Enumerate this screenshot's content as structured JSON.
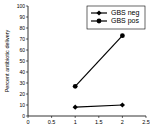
{
  "chart_data": {
    "type": "line",
    "y_label": "Percent antibiotic delivery",
    "x": [
      1,
      2
    ],
    "series": [
      {
        "name": "GBS neg",
        "color": "#000000",
        "marker": "diamond",
        "values": [
          8,
          10
        ]
      },
      {
        "name": "GBS pos",
        "color": "#000000",
        "marker": "circle",
        "values": [
          27,
          73
        ]
      }
    ],
    "xlim": [
      0,
      2.5
    ],
    "xticks": [
      0,
      0.5,
      1,
      1.5,
      2,
      2.5
    ],
    "ylim": [
      0,
      100
    ],
    "yticks": [
      0,
      10,
      20,
      30,
      40,
      50,
      60,
      70,
      80,
      90,
      100
    ],
    "grid": false,
    "legend": "upper right"
  }
}
